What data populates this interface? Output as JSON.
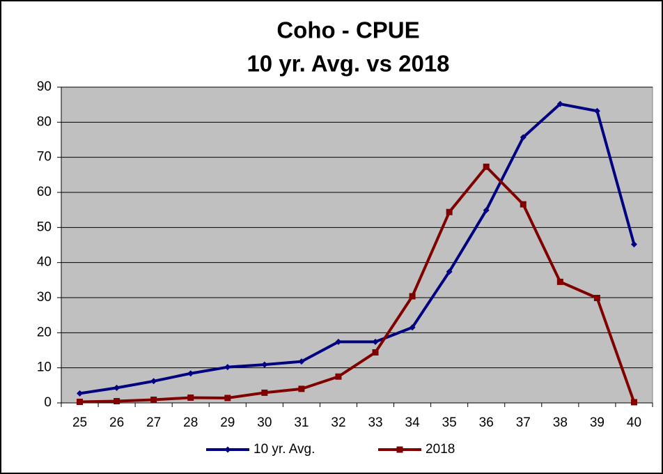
{
  "chart_data": {
    "type": "line",
    "title": [
      "Coho - CPUE",
      "10 yr. Avg. vs 2018"
    ],
    "categories": [
      25,
      26,
      27,
      28,
      29,
      30,
      31,
      32,
      33,
      34,
      35,
      36,
      37,
      38,
      39,
      40
    ],
    "series": [
      {
        "name": "10 yr. Avg.",
        "color": "#000080",
        "marker": "diamond",
        "values": [
          2.7,
          4.3,
          6.2,
          8.4,
          10.2,
          10.9,
          11.8,
          17.4,
          17.4,
          21.5,
          37.4,
          54.9,
          75.7,
          85.2,
          83.2,
          45.2
        ]
      },
      {
        "name": "2018",
        "color": "#800000",
        "marker": "square",
        "values": [
          0.3,
          0.5,
          0.9,
          1.5,
          1.4,
          2.9,
          4.0,
          7.5,
          14.4,
          30.4,
          54.4,
          67.3,
          56.6,
          34.5,
          29.9,
          0.2
        ]
      }
    ],
    "ylim": [
      0,
      90
    ],
    "yticks": [
      0,
      10,
      20,
      30,
      40,
      50,
      60,
      70,
      80,
      90
    ],
    "grid": true,
    "legend": "bottom",
    "plot_background": "#c0c0c0"
  }
}
